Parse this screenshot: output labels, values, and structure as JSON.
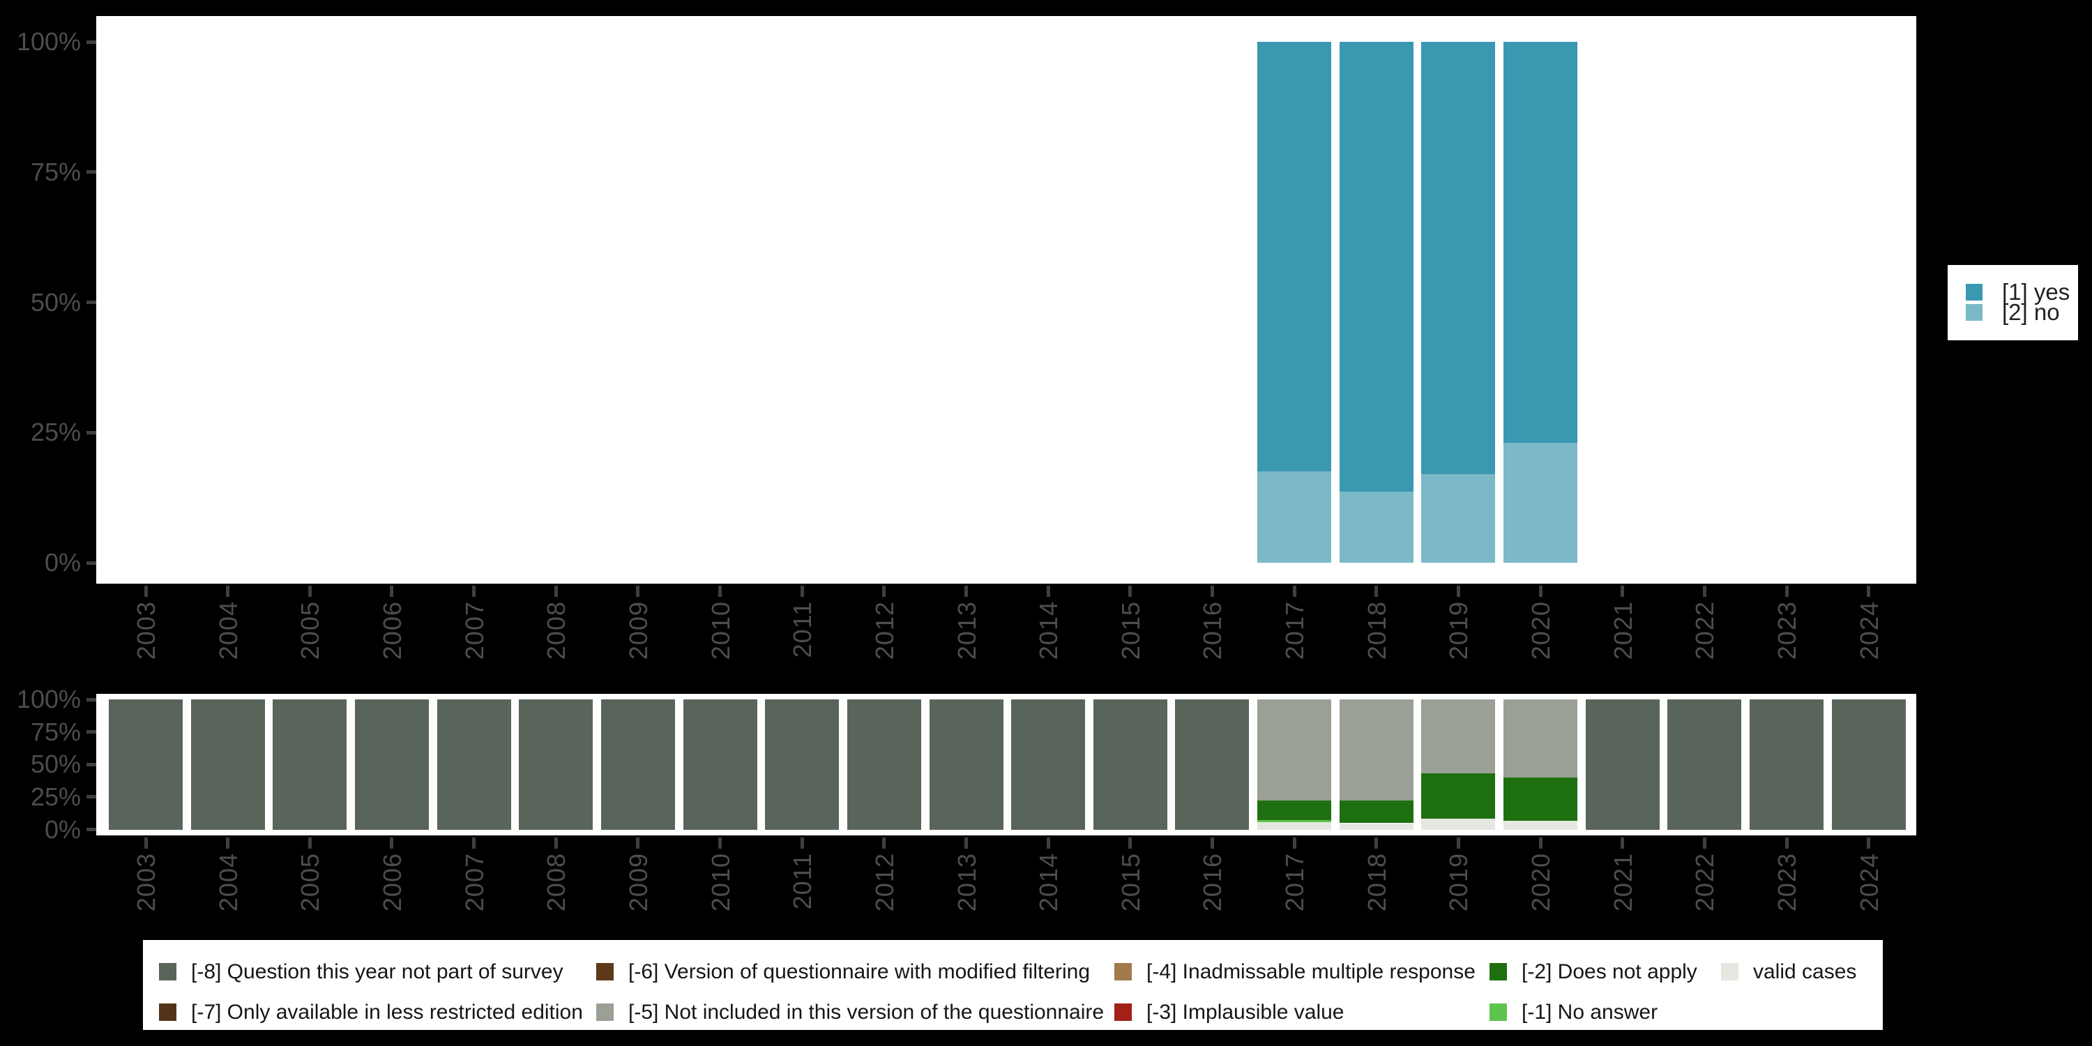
{
  "colors": {
    "background": "#000000",
    "plot_background": "#ffffff",
    "axis_label": "#4d4d4d",
    "tick": "#3f3f3f",
    "legend_text": "#161616"
  },
  "x_years": [
    "2003",
    "2004",
    "2005",
    "2006",
    "2007",
    "2008",
    "2009",
    "2010",
    "2011",
    "2012",
    "2013",
    "2014",
    "2015",
    "2016",
    "2017",
    "2018",
    "2019",
    "2020",
    "2021",
    "2022",
    "2023",
    "2024"
  ],
  "y_tick_labels": [
    "100%",
    "75%",
    "50%",
    "25%",
    "0%"
  ],
  "legend_right": {
    "items": [
      {
        "label": "[1] yes",
        "color": "#3a98b1"
      },
      {
        "label": "[2] no",
        "color": "#7cb9c8"
      }
    ]
  },
  "legend_bottom": {
    "columns": [
      [
        {
          "label": "[-8] Question this year not part of survey",
          "color": "#59645a"
        },
        {
          "label": "[-7] Only available in less restricted edition",
          "color": "#53341a"
        }
      ],
      [
        {
          "label": "[-6] Version of questionnaire with modified filtering",
          "color": "#5d3a1a"
        },
        {
          "label": "[-5] Not included in this version of the questionnaire",
          "color": "#9aa096"
        }
      ],
      [
        {
          "label": "[-4] Inadmissable multiple response",
          "color": "#a27a4e"
        },
        {
          "label": "[-3] Implausible value",
          "color": "#a32019"
        }
      ],
      [
        {
          "label": "[-2] Does not apply",
          "color": "#1e6f10"
        },
        {
          "label": "[-1] No answer",
          "color": "#5ec44d"
        }
      ],
      [
        {
          "label": "valid cases",
          "color": "#e4e8e0"
        }
      ]
    ]
  },
  "chart_data": [
    {
      "id": "values-distribution",
      "type": "bar",
      "stacked": true,
      "unit": "percent",
      "title": "",
      "xlabel": "",
      "ylabel": "",
      "ylim": [
        0,
        100
      ],
      "grid": false,
      "legend_position": "right",
      "categories": [
        "2003",
        "2004",
        "2005",
        "2006",
        "2007",
        "2008",
        "2009",
        "2010",
        "2011",
        "2012",
        "2013",
        "2014",
        "2015",
        "2016",
        "2017",
        "2018",
        "2019",
        "2020",
        "2021",
        "2022",
        "2023",
        "2024"
      ],
      "y_ticks": [
        "100%",
        "75%",
        "50%",
        "25%",
        "0%"
      ],
      "series": [
        {
          "name": "[1] yes",
          "color": "#3a98b1",
          "values": [
            null,
            null,
            null,
            null,
            null,
            null,
            null,
            null,
            null,
            null,
            null,
            null,
            null,
            null,
            82.5,
            86.4,
            83.0,
            77.0,
            null,
            null,
            null,
            null
          ]
        },
        {
          "name": "[2] no",
          "color": "#7cb9c8",
          "values": [
            null,
            null,
            null,
            null,
            null,
            null,
            null,
            null,
            null,
            null,
            null,
            null,
            null,
            null,
            17.5,
            13.6,
            17.0,
            23.0,
            null,
            null,
            null,
            null
          ]
        }
      ]
    },
    {
      "id": "missing-values",
      "type": "bar",
      "stacked": true,
      "unit": "percent",
      "title": "",
      "xlabel": "",
      "ylabel": "",
      "ylim": [
        0,
        100
      ],
      "grid": false,
      "legend_position": "bottom",
      "categories": [
        "2003",
        "2004",
        "2005",
        "2006",
        "2007",
        "2008",
        "2009",
        "2010",
        "2011",
        "2012",
        "2013",
        "2014",
        "2015",
        "2016",
        "2017",
        "2018",
        "2019",
        "2020",
        "2021",
        "2022",
        "2023",
        "2024"
      ],
      "y_ticks": [
        "100%",
        "75%",
        "50%",
        "25%",
        "0%"
      ],
      "series": [
        {
          "name": "[-8] Question this year not part of survey",
          "color": "#59645a",
          "values": [
            100,
            100,
            100,
            100,
            100,
            100,
            100,
            100,
            100,
            100,
            100,
            100,
            100,
            100,
            null,
            null,
            null,
            null,
            100,
            100,
            100,
            100
          ]
        },
        {
          "name": "[-5] Not included in this version of the questionnaire",
          "color": "#9aa096",
          "values": [
            null,
            null,
            null,
            null,
            null,
            null,
            null,
            null,
            null,
            null,
            null,
            null,
            null,
            null,
            77.7,
            77.8,
            57.0,
            60.0,
            null,
            null,
            null,
            null
          ]
        },
        {
          "name": "[-2] Does not apply",
          "color": "#1e6f10",
          "values": [
            null,
            null,
            null,
            null,
            null,
            null,
            null,
            null,
            null,
            null,
            null,
            null,
            null,
            null,
            15.2,
            17.3,
            34.5,
            33.0,
            null,
            null,
            null,
            null
          ]
        },
        {
          "name": "[-1] No answer",
          "color": "#5ec44d",
          "values": [
            null,
            null,
            null,
            null,
            null,
            null,
            null,
            null,
            null,
            null,
            null,
            null,
            null,
            null,
            1.6,
            null,
            null,
            null,
            null,
            null,
            null,
            null
          ]
        },
        {
          "name": "valid cases",
          "color": "#e4e8e0",
          "values": [
            null,
            null,
            null,
            null,
            null,
            null,
            null,
            null,
            null,
            null,
            null,
            null,
            null,
            null,
            5.5,
            4.9,
            8.5,
            7.0,
            null,
            null,
            null,
            null
          ]
        }
      ]
    }
  ]
}
